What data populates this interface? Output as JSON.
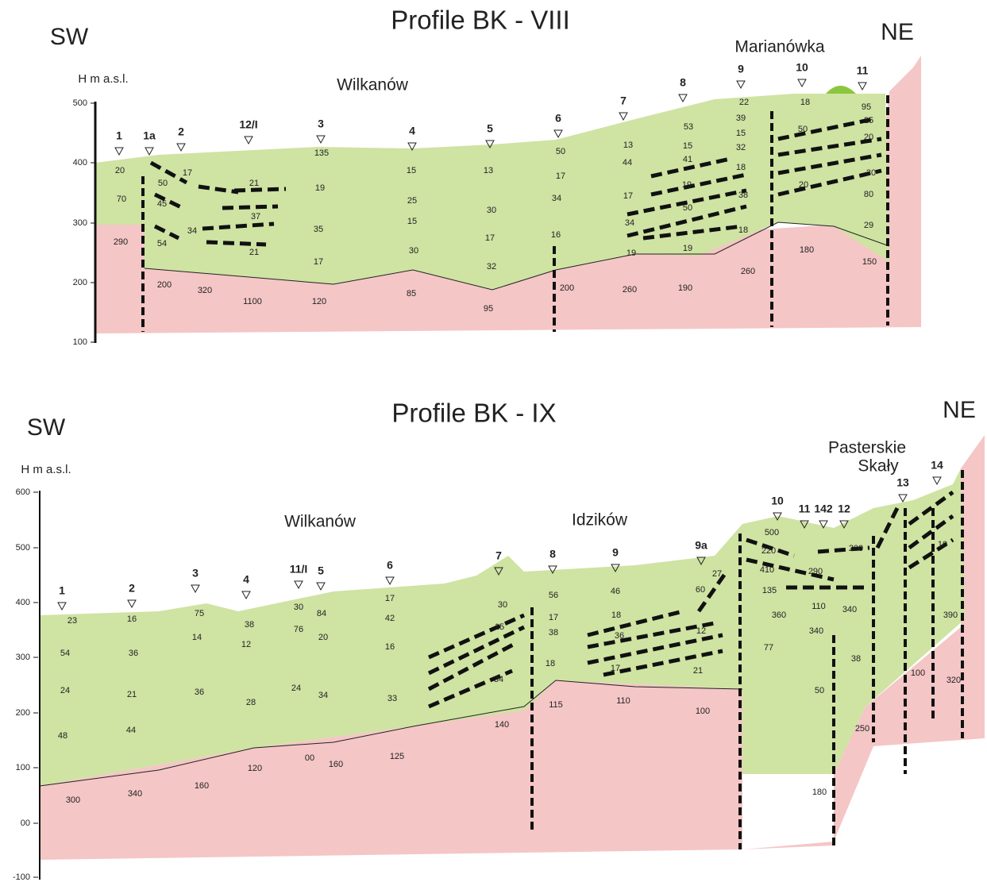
{
  "profiles": [
    {
      "title": "Profile BK - VIII",
      "sw": "SW",
      "ne": "NE",
      "axis_label": "H m a.s.l.",
      "places": [
        "Marianówka",
        "Wilkanów"
      ],
      "yticks": [
        "500",
        "400",
        "300",
        "200",
        "100"
      ],
      "stations": [
        "1",
        "1a",
        "2",
        "12/I",
        "3",
        "4",
        "5",
        "6",
        "7",
        "8",
        "9",
        "10",
        "11"
      ],
      "values": [
        20,
        70,
        290,
        17,
        50,
        45,
        34,
        54,
        200,
        320,
        21,
        37,
        21,
        1100,
        135,
        19,
        35,
        17,
        120,
        15,
        25,
        15,
        30,
        85,
        13,
        30,
        17,
        32,
        95,
        50,
        17,
        34,
        16,
        200,
        13,
        44,
        17,
        34,
        19,
        260,
        53,
        15,
        41,
        19,
        50,
        19,
        190,
        22,
        39,
        15,
        32,
        18,
        38,
        18,
        260,
        18,
        50,
        20,
        180,
        95,
        25,
        20,
        30,
        80,
        29,
        150
      ]
    },
    {
      "title": "Profile BK - IX",
      "sw": "SW",
      "ne": "NE",
      "axis_label": "H m a.s.l.",
      "places": [
        "Wilkanów",
        "Idzików",
        "Pasterskie",
        "Skały"
      ],
      "yticks": [
        "600",
        "500",
        "400",
        "300",
        "200",
        "100",
        "00",
        "-100"
      ],
      "stations": [
        "1",
        "2",
        "3",
        "4",
        "11/I",
        "5",
        "6",
        "7",
        "8",
        "9",
        "9a",
        "10",
        "11",
        "142",
        "12",
        "13",
        "14"
      ],
      "values": [
        23,
        54,
        24,
        48,
        300,
        16,
        36,
        21,
        44,
        340,
        75,
        14,
        36,
        160,
        38,
        12,
        28,
        120,
        30,
        76,
        24,
        84,
        20,
        34,
        "00",
        160,
        17,
        42,
        16,
        33,
        125,
        30,
        15,
        34,
        140,
        56,
        17,
        38,
        18,
        115,
        46,
        18,
        36,
        17,
        110,
        27,
        60,
        12,
        21,
        100,
        500,
        220,
        410,
        135,
        360,
        77,
        290,
        110,
        340,
        50,
        180,
        200,
        340,
        38,
        250,
        10,
        390,
        100,
        320
      ]
    }
  ]
}
